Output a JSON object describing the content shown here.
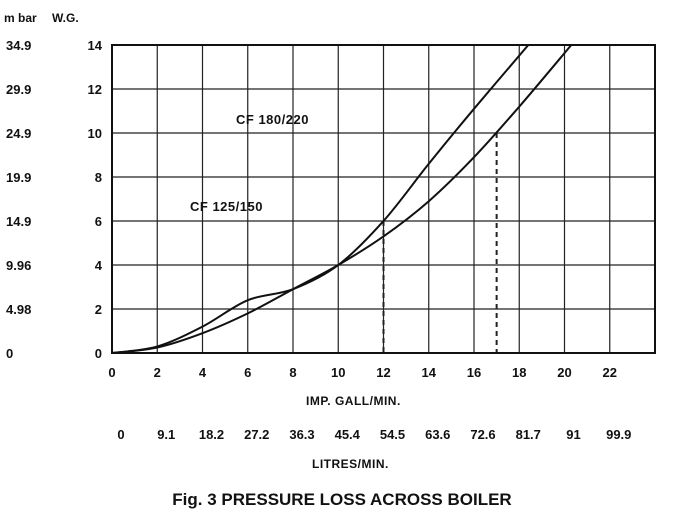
{
  "chart_data": {
    "type": "line",
    "title": "",
    "caption": "Fig. 3  PRESSURE LOSS ACROSS BOILER",
    "xlabel": "IMP. GALL/MIN.",
    "x2label": "LITRES/MIN.",
    "y_left_header": "m bar",
    "y_right_header": "W.G.",
    "xlim": [
      0,
      24
    ],
    "ylim": [
      0,
      14
    ],
    "x_ticks": [
      0,
      2,
      4,
      6,
      8,
      10,
      12,
      14,
      16,
      18,
      20,
      22
    ],
    "x_tick_labels": [
      "0",
      "2",
      "4",
      "6",
      "8",
      "10",
      "12",
      "14",
      "16",
      "18",
      "20",
      "22"
    ],
    "x2_tick_labels": [
      "0",
      "9.1",
      "18.2",
      "27.2",
      "36.3",
      "45.4",
      "54.5",
      "63.6",
      "72.6",
      "81.7",
      "91",
      "99.9"
    ],
    "y_ticks": [
      0,
      2,
      4,
      6,
      8,
      10,
      12,
      14
    ],
    "y_tick_labels": [
      "0",
      "2",
      "4",
      "6",
      "8",
      "10",
      "12",
      "14"
    ],
    "y_mbar_labels": [
      "0",
      "4.98",
      "9.96",
      "14.9",
      "19.9",
      "24.9",
      "29.9",
      "34.9"
    ],
    "grid": true,
    "series": [
      {
        "name": "CF 180/220",
        "x": [
          0,
          2,
          4,
          6,
          8,
          10,
          12,
          14,
          16,
          18.4
        ],
        "y": [
          0,
          0.3,
          1.2,
          2.4,
          2.9,
          4,
          6,
          8.6,
          11.1,
          14
        ]
      },
      {
        "name": "CF 125/150",
        "x": [
          0,
          2,
          4,
          6,
          8,
          10,
          12,
          14,
          16,
          18,
          20.3
        ],
        "y": [
          0,
          0.25,
          0.9,
          1.8,
          2.9,
          4,
          5.3,
          6.9,
          8.9,
          11.2,
          14
        ]
      }
    ],
    "annotations": [
      {
        "text": "CF 180/220",
        "x": 10,
        "y": 10.5
      },
      {
        "text": "CF 125/150",
        "x": 9,
        "y": 6.5
      }
    ],
    "guides": [
      {
        "from": [
          0,
          10
        ],
        "to": [
          17,
          10
        ],
        "vertical_to_axis": true
      },
      {
        "from": [
          0,
          6
        ],
        "to": [
          12,
          6
        ],
        "vertical_to_axis": true
      }
    ]
  }
}
